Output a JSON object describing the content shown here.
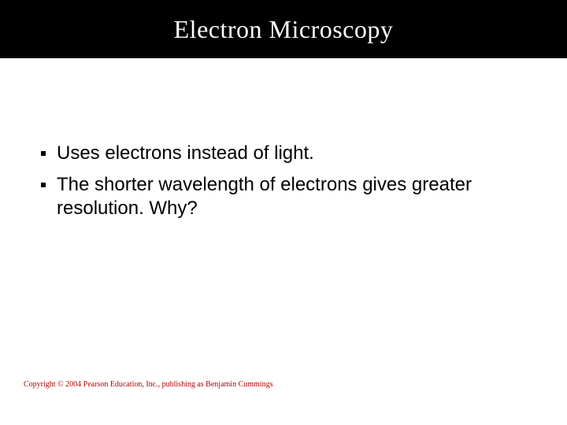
{
  "title": "Electron Microscopy",
  "title_fontsize": 32,
  "title_color": "#ffffff",
  "title_band_background": "#000000",
  "background_color": "#ffffff",
  "bullets": [
    {
      "text": "Uses electrons instead of light."
    },
    {
      "text": "The shorter wavelength of electrons gives greater resolution.  Why?"
    }
  ],
  "bullet_fontsize": 24,
  "bullet_color": "#000000",
  "bullet_marker_color": "#000000",
  "copyright": "Copyright © 2004 Pearson Education, Inc., publishing as Benjamin Cummings",
  "copyright_color": "#b00000",
  "copyright_fontsize": 10,
  "slide_width": 720,
  "slide_height": 540
}
